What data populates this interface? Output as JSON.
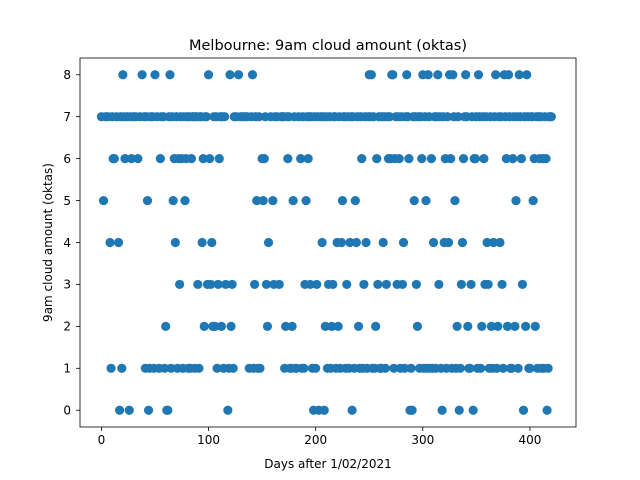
{
  "chart_data": {
    "type": "scatter",
    "title": "Melbourne: 9am cloud amount (oktas)",
    "xlabel": "Days after 1/02/2021",
    "ylabel": "9am cloud amount (oktas)",
    "xlim": [
      -20,
      443
    ],
    "ylim": [
      -0.4,
      8.4
    ],
    "xticks": [
      0,
      100,
      200,
      300,
      400
    ],
    "yticks": [
      0,
      1,
      2,
      3,
      4,
      5,
      6,
      7,
      8
    ],
    "grid": false,
    "marker_color": "#1f77b4",
    "points": [
      [
        0,
        7
      ],
      [
        2,
        5
      ],
      [
        4,
        7
      ],
      [
        6,
        7
      ],
      [
        8,
        4
      ],
      [
        9,
        1
      ],
      [
        10,
        7
      ],
      [
        11,
        6
      ],
      [
        12,
        6
      ],
      [
        14,
        7
      ],
      [
        16,
        4
      ],
      [
        17,
        0
      ],
      [
        18,
        7
      ],
      [
        19,
        1
      ],
      [
        20,
        8
      ],
      [
        21,
        7
      ],
      [
        22,
        6
      ],
      [
        24,
        7
      ],
      [
        26,
        0
      ],
      [
        27,
        7
      ],
      [
        28,
        6
      ],
      [
        30,
        7
      ],
      [
        32,
        7
      ],
      [
        34,
        6
      ],
      [
        36,
        7
      ],
      [
        38,
        8
      ],
      [
        40,
        7
      ],
      [
        41,
        1
      ],
      [
        42,
        7
      ],
      [
        43,
        5
      ],
      [
        44,
        0
      ],
      [
        45,
        1
      ],
      [
        46,
        7
      ],
      [
        48,
        7
      ],
      [
        49,
        1
      ],
      [
        50,
        8
      ],
      [
        52,
        7
      ],
      [
        54,
        1
      ],
      [
        55,
        6
      ],
      [
        56,
        7
      ],
      [
        58,
        7
      ],
      [
        59,
        1
      ],
      [
        60,
        2
      ],
      [
        61,
        0
      ],
      [
        62,
        0
      ],
      [
        63,
        7
      ],
      [
        64,
        8
      ],
      [
        65,
        1
      ],
      [
        66,
        7
      ],
      [
        67,
        5
      ],
      [
        68,
        6
      ],
      [
        69,
        4
      ],
      [
        70,
        7
      ],
      [
        71,
        1
      ],
      [
        72,
        6
      ],
      [
        73,
        3
      ],
      [
        74,
        7
      ],
      [
        75,
        6
      ],
      [
        76,
        1
      ],
      [
        77,
        7
      ],
      [
        78,
        5
      ],
      [
        79,
        6
      ],
      [
        80,
        7
      ],
      [
        81,
        1
      ],
      [
        82,
        7
      ],
      [
        83,
        1
      ],
      [
        84,
        6
      ],
      [
        85,
        7
      ],
      [
        86,
        7
      ],
      [
        87,
        1
      ],
      [
        88,
        7
      ],
      [
        89,
        7
      ],
      [
        90,
        3
      ],
      [
        91,
        1
      ],
      [
        92,
        7
      ],
      [
        93,
        7
      ],
      [
        94,
        4
      ],
      [
        95,
        6
      ],
      [
        96,
        2
      ],
      [
        97,
        7
      ],
      [
        98,
        7
      ],
      [
        99,
        3
      ],
      [
        100,
        8
      ],
      [
        101,
        6
      ],
      [
        102,
        3
      ],
      [
        103,
        4
      ],
      [
        104,
        2
      ],
      [
        105,
        7
      ],
      [
        106,
        2
      ],
      [
        107,
        7
      ],
      [
        108,
        1
      ],
      [
        109,
        3
      ],
      [
        110,
        6
      ],
      [
        111,
        7
      ],
      [
        112,
        2
      ],
      [
        113,
        7
      ],
      [
        114,
        1
      ],
      [
        115,
        7
      ],
      [
        116,
        3
      ],
      [
        118,
        0
      ],
      [
        119,
        1
      ],
      [
        120,
        8
      ],
      [
        121,
        2
      ],
      [
        122,
        3
      ],
      [
        123,
        1
      ],
      [
        124,
        7
      ],
      [
        126,
        7
      ],
      [
        128,
        8
      ],
      [
        130,
        7
      ],
      [
        132,
        7
      ],
      [
        134,
        7
      ],
      [
        136,
        7
      ],
      [
        138,
        1
      ],
      [
        140,
        7
      ],
      [
        141,
        8
      ],
      [
        142,
        1
      ],
      [
        143,
        3
      ],
      [
        144,
        7
      ],
      [
        145,
        5
      ],
      [
        146,
        1
      ],
      [
        147,
        7
      ],
      [
        148,
        1
      ],
      [
        150,
        6
      ],
      [
        151,
        5
      ],
      [
        152,
        6
      ],
      [
        153,
        7
      ],
      [
        154,
        3
      ],
      [
        155,
        2
      ],
      [
        156,
        4
      ],
      [
        158,
        7
      ],
      [
        160,
        5
      ],
      [
        161,
        3
      ],
      [
        162,
        7
      ],
      [
        164,
        7
      ],
      [
        166,
        3
      ],
      [
        168,
        7
      ],
      [
        169,
        7
      ],
      [
        170,
        7
      ],
      [
        171,
        1
      ],
      [
        172,
        2
      ],
      [
        173,
        7
      ],
      [
        174,
        6
      ],
      [
        175,
        7
      ],
      [
        176,
        1
      ],
      [
        177,
        1
      ],
      [
        178,
        2
      ],
      [
        179,
        5
      ],
      [
        180,
        7
      ],
      [
        181,
        1
      ],
      [
        182,
        1
      ],
      [
        184,
        7
      ],
      [
        186,
        6
      ],
      [
        187,
        1
      ],
      [
        188,
        7
      ],
      [
        189,
        1
      ],
      [
        190,
        3
      ],
      [
        191,
        5
      ],
      [
        192,
        7
      ],
      [
        193,
        6
      ],
      [
        194,
        7
      ],
      [
        195,
        3
      ],
      [
        196,
        7
      ],
      [
        197,
        1
      ],
      [
        198,
        0
      ],
      [
        199,
        7
      ],
      [
        200,
        1
      ],
      [
        201,
        3
      ],
      [
        202,
        7
      ],
      [
        203,
        0
      ],
      [
        205,
        7
      ],
      [
        206,
        4
      ],
      [
        207,
        7
      ],
      [
        208,
        0
      ],
      [
        209,
        2
      ],
      [
        210,
        7
      ],
      [
        211,
        1
      ],
      [
        212,
        3
      ],
      [
        213,
        7
      ],
      [
        214,
        1
      ],
      [
        215,
        2
      ],
      [
        216,
        3
      ],
      [
        217,
        7
      ],
      [
        218,
        7
      ],
      [
        219,
        1
      ],
      [
        220,
        4
      ],
      [
        221,
        2
      ],
      [
        222,
        7
      ],
      [
        223,
        1
      ],
      [
        224,
        4
      ],
      [
        225,
        5
      ],
      [
        226,
        7
      ],
      [
        227,
        7
      ],
      [
        228,
        1
      ],
      [
        229,
        3
      ],
      [
        230,
        7
      ],
      [
        231,
        1
      ],
      [
        232,
        4
      ],
      [
        233,
        7
      ],
      [
        234,
        0
      ],
      [
        235,
        7
      ],
      [
        236,
        1
      ],
      [
        237,
        5
      ],
      [
        238,
        4
      ],
      [
        239,
        7
      ],
      [
        240,
        2
      ],
      [
        241,
        1
      ],
      [
        242,
        7
      ],
      [
        243,
        6
      ],
      [
        244,
        1
      ],
      [
        245,
        3
      ],
      [
        246,
        7
      ],
      [
        247,
        4
      ],
      [
        248,
        1
      ],
      [
        249,
        7
      ],
      [
        250,
        8
      ],
      [
        251,
        7
      ],
      [
        252,
        8
      ],
      [
        253,
        1
      ],
      [
        254,
        7
      ],
      [
        255,
        1
      ],
      [
        256,
        2
      ],
      [
        257,
        6
      ],
      [
        258,
        3
      ],
      [
        259,
        7
      ],
      [
        260,
        1
      ],
      [
        261,
        1
      ],
      [
        262,
        7
      ],
      [
        263,
        4
      ],
      [
        264,
        7
      ],
      [
        265,
        1
      ],
      [
        266,
        3
      ],
      [
        267,
        7
      ],
      [
        268,
        6
      ],
      [
        269,
        7
      ],
      [
        270,
        6
      ],
      [
        271,
        8
      ],
      [
        272,
        8
      ],
      [
        273,
        1
      ],
      [
        274,
        6
      ],
      [
        275,
        7
      ],
      [
        276,
        3
      ],
      [
        277,
        7
      ],
      [
        278,
        6
      ],
      [
        279,
        1
      ],
      [
        280,
        7
      ],
      [
        281,
        3
      ],
      [
        282,
        4
      ],
      [
        283,
        1
      ],
      [
        284,
        7
      ],
      [
        285,
        8
      ],
      [
        286,
        7
      ],
      [
        287,
        6
      ],
      [
        288,
        0
      ],
      [
        289,
        1
      ],
      [
        290,
        0
      ],
      [
        291,
        7
      ],
      [
        292,
        5
      ],
      [
        293,
        7
      ],
      [
        294,
        3
      ],
      [
        295,
        2
      ],
      [
        296,
        7
      ],
      [
        297,
        1
      ],
      [
        298,
        7
      ],
      [
        299,
        6
      ],
      [
        300,
        8
      ],
      [
        301,
        1
      ],
      [
        302,
        7
      ],
      [
        303,
        5
      ],
      [
        304,
        1
      ],
      [
        305,
        8
      ],
      [
        306,
        7
      ],
      [
        307,
        1
      ],
      [
        308,
        6
      ],
      [
        309,
        1
      ],
      [
        310,
        4
      ],
      [
        311,
        7
      ],
      [
        312,
        1
      ],
      [
        313,
        7
      ],
      [
        314,
        8
      ],
      [
        315,
        3
      ],
      [
        316,
        7
      ],
      [
        317,
        1
      ],
      [
        318,
        0
      ],
      [
        319,
        7
      ],
      [
        320,
        4
      ],
      [
        321,
        6
      ],
      [
        322,
        1
      ],
      [
        323,
        7
      ],
      [
        324,
        4
      ],
      [
        325,
        8
      ],
      [
        326,
        6
      ],
      [
        327,
        1
      ],
      [
        328,
        8
      ],
      [
        329,
        7
      ],
      [
        330,
        5
      ],
      [
        331,
        1
      ],
      [
        332,
        2
      ],
      [
        333,
        7
      ],
      [
        334,
        0
      ],
      [
        335,
        1
      ],
      [
        336,
        3
      ],
      [
        337,
        4
      ],
      [
        338,
        6
      ],
      [
        339,
        7
      ],
      [
        340,
        8
      ],
      [
        341,
        7
      ],
      [
        342,
        2
      ],
      [
        343,
        1
      ],
      [
        344,
        1
      ],
      [
        345,
        3
      ],
      [
        346,
        7
      ],
      [
        347,
        0
      ],
      [
        348,
        6
      ],
      [
        349,
        6
      ],
      [
        350,
        7
      ],
      [
        351,
        1
      ],
      [
        352,
        8
      ],
      [
        353,
        7
      ],
      [
        354,
        1
      ],
      [
        355,
        2
      ],
      [
        356,
        7
      ],
      [
        357,
        6
      ],
      [
        358,
        3
      ],
      [
        359,
        7
      ],
      [
        360,
        4
      ],
      [
        361,
        3
      ],
      [
        362,
        1
      ],
      [
        363,
        7
      ],
      [
        364,
        2
      ],
      [
        365,
        1
      ],
      [
        366,
        4
      ],
      [
        367,
        7
      ],
      [
        368,
        8
      ],
      [
        369,
        1
      ],
      [
        370,
        2
      ],
      [
        371,
        7
      ],
      [
        372,
        4
      ],
      [
        373,
        7
      ],
      [
        374,
        3
      ],
      [
        375,
        1
      ],
      [
        376,
        8
      ],
      [
        377,
        7
      ],
      [
        378,
        6
      ],
      [
        379,
        2
      ],
      [
        380,
        8
      ],
      [
        381,
        7
      ],
      [
        382,
        1
      ],
      [
        383,
        1
      ],
      [
        384,
        6
      ],
      [
        385,
        7
      ],
      [
        386,
        2
      ],
      [
        387,
        5
      ],
      [
        388,
        7
      ],
      [
        389,
        1
      ],
      [
        390,
        8
      ],
      [
        391,
        7
      ],
      [
        392,
        6
      ],
      [
        393,
        3
      ],
      [
        394,
        0
      ],
      [
        395,
        7
      ],
      [
        396,
        2
      ],
      [
        397,
        8
      ],
      [
        398,
        7
      ],
      [
        399,
        1
      ],
      [
        400,
        1
      ],
      [
        401,
        7
      ],
      [
        402,
        7
      ],
      [
        403,
        5
      ],
      [
        404,
        6
      ],
      [
        405,
        2
      ],
      [
        406,
        7
      ],
      [
        407,
        1
      ],
      [
        408,
        7
      ],
      [
        409,
        6
      ],
      [
        410,
        7
      ],
      [
        411,
        1
      ],
      [
        412,
        6
      ],
      [
        413,
        1
      ],
      [
        414,
        7
      ],
      [
        415,
        6
      ],
      [
        416,
        0
      ],
      [
        417,
        1
      ],
      [
        418,
        7
      ],
      [
        419,
        7
      ],
      [
        420,
        7
      ]
    ]
  }
}
